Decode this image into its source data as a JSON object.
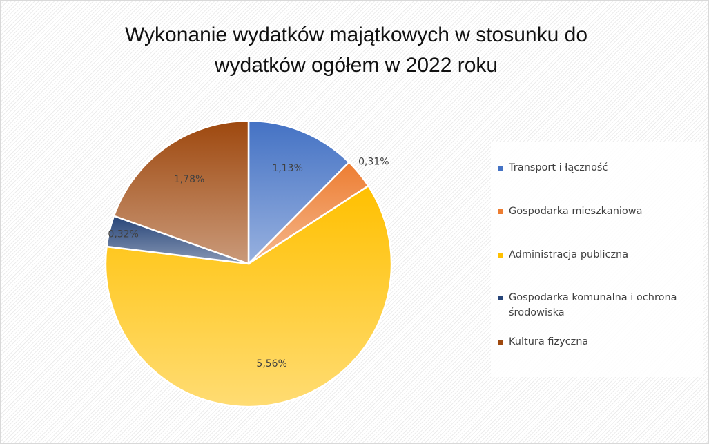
{
  "chart_data": {
    "type": "pie",
    "title": "Wykonanie wydatków majątkowych w stosunku do wydatków ogółem w 2022 roku",
    "categories": [
      "Transport i łączność",
      "Gospodarka mieszkaniowa",
      "Administracja publiczna",
      "Gospodarka komunalna i ochrona środowiska",
      "Kultura fizyczna"
    ],
    "values": [
      1.13,
      0.31,
      5.56,
      0.32,
      1.78
    ],
    "value_labels": [
      "1,13%",
      "0,31%",
      "5,56%",
      "0,32%",
      "1,78%"
    ],
    "colors": [
      "#4472c4",
      "#ed7d31",
      "#ffc000",
      "#264478",
      "#9e480e"
    ],
    "legend": "right"
  }
}
